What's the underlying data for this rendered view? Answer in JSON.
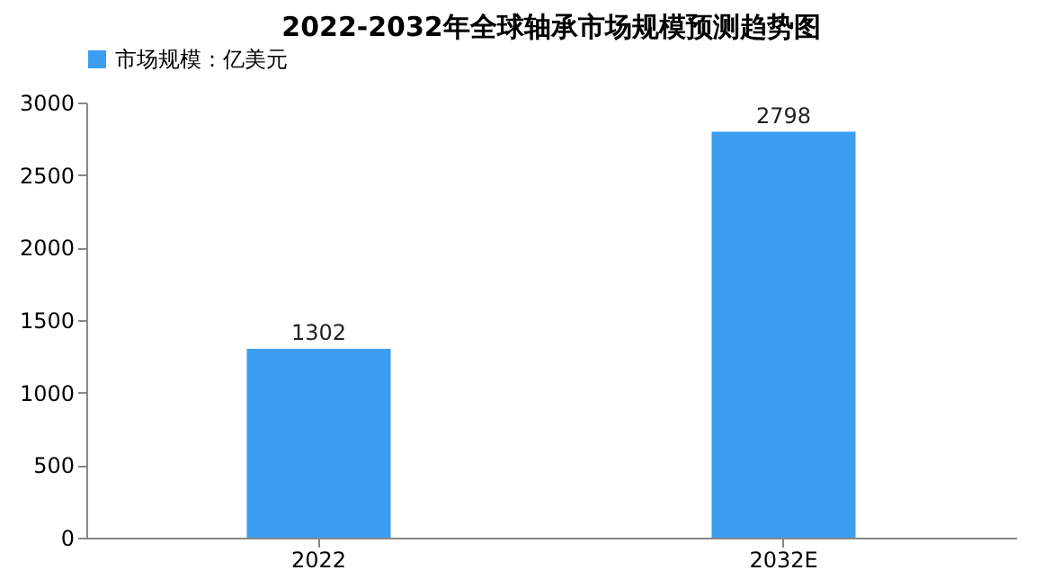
{
  "chart_data": {
    "type": "bar",
    "title": "2022-2032年全球轴承市场规模预测趋势图",
    "categories": [
      "2022",
      "2032E"
    ],
    "series": [
      {
        "name": "市场规模：亿美元",
        "color": "#3d9df0",
        "values": [
          1302,
          2798
        ]
      }
    ],
    "ylim": [
      0,
      3000
    ],
    "yticks": [
      0,
      500,
      1000,
      1500,
      2000,
      2500,
      3000
    ],
    "grid": false,
    "legend": "top",
    "data_labels": true
  }
}
